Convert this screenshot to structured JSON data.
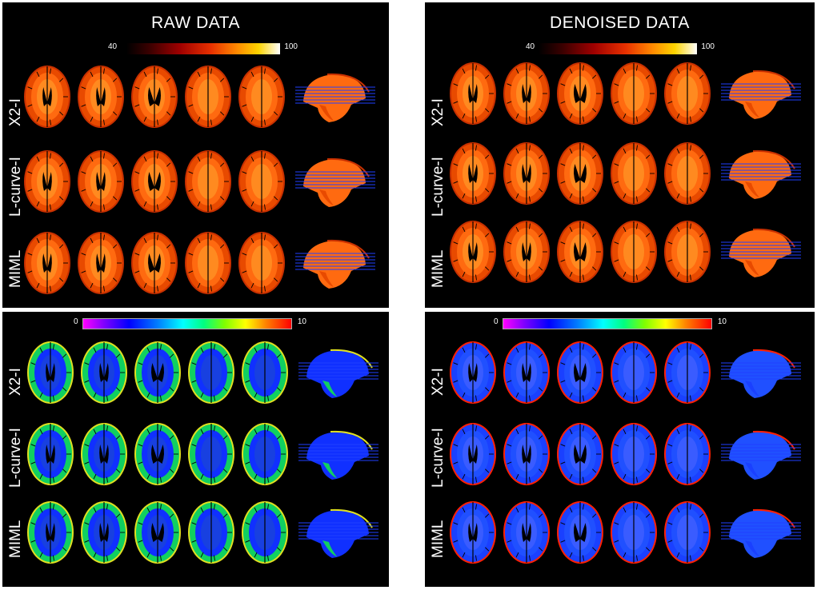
{
  "panels": {
    "raw_map": {
      "title": "RAW DATA",
      "colormap": "hot",
      "cbar_min": "40",
      "cbar_max": "100",
      "rows": [
        "X2-I",
        "L-curve-I",
        "MIML"
      ]
    },
    "denoised_map": {
      "title": "DENOISED DATA",
      "colormap": "hot",
      "cbar_min": "40",
      "cbar_max": "100",
      "rows": [
        "X2-I",
        "L-curve-I",
        "MIML"
      ]
    },
    "raw_err": {
      "colormap": "jet",
      "cbar_min": "0",
      "cbar_max": "10",
      "rows": [
        "X2-I",
        "L-curve-I",
        "MIML"
      ]
    },
    "denoised_err": {
      "colormap": "jet",
      "cbar_min": "0",
      "cbar_max": "10",
      "rows": [
        "X2-I",
        "L-curve-I",
        "MIML"
      ]
    }
  },
  "colors": {
    "panel_bg": "#000000",
    "page_bg": "#ffffff",
    "map_outer": "#e84a00",
    "map_inner": "#ff6a10",
    "map_wm": "#ff8a20",
    "err_outer": "#1030ff",
    "err_inner_raw": "#10d060",
    "err_inner_denoised": "#1a40ff",
    "err_rim": "#ff2000",
    "slice_line": "#2040ff"
  }
}
